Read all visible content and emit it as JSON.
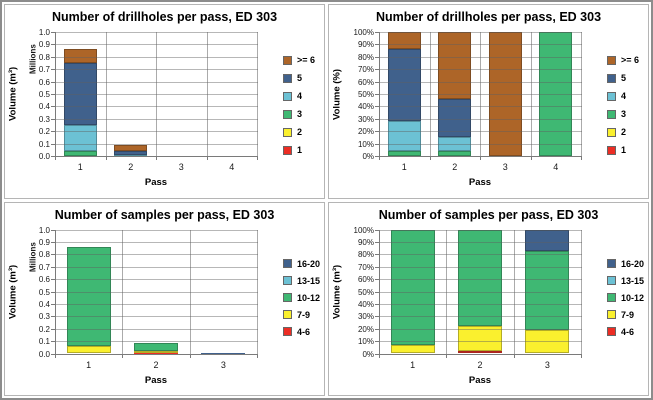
{
  "page": {
    "background": "#ffffff",
    "outer_border_color": "#8c8c8c",
    "panel_border_color": "#b5b5b5"
  },
  "palette": {
    "red": "#EC2D24",
    "yellow": "#FAF02E",
    "green": "#3FB873",
    "light_blue": "#6CC1D4",
    "dark_blue": "#40618C",
    "brown": "#AD6528",
    "gridline": "#ababab",
    "axis": "#7a7a7a"
  },
  "chart_data": [
    {
      "type": "bar",
      "stacked": true,
      "title": "Number of drillholes per pass, ED 303",
      "xlabel": "Pass",
      "ylabel": "Volume (m³)",
      "y_unit_label": "Millions",
      "ylim": [
        0,
        1.0
      ],
      "ytick_step": 0.1,
      "ytick_format": "number",
      "grid": true,
      "legend_position": "right",
      "categories": [
        "1",
        "2",
        "3",
        "4"
      ],
      "series": [
        {
          "name": "1",
          "color": "#EC2D24",
          "values": [
            0,
            0,
            0,
            0
          ]
        },
        {
          "name": "2",
          "color": "#FAF02E",
          "values": [
            0,
            0,
            0,
            0
          ]
        },
        {
          "name": "3",
          "color": "#3FB873",
          "values": [
            0.04,
            0.003,
            0,
            0.002
          ]
        },
        {
          "name": "4",
          "color": "#6CC1D4",
          "values": [
            0.21,
            0.009,
            0,
            0
          ]
        },
        {
          "name": "5",
          "color": "#40618C",
          "values": [
            0.5,
            0.025,
            0,
            0
          ]
        },
        {
          "name": ">= 6",
          "color": "#AD6528",
          "values": [
            0.11,
            0.048,
            0.002,
            0
          ]
        }
      ]
    },
    {
      "type": "bar",
      "stacked": true,
      "title": "Number of drillholes per pass, ED 303",
      "xlabel": "Pass",
      "ylabel": "Volume (%)",
      "y_unit_label": null,
      "ylim": [
        0,
        100
      ],
      "ytick_step": 10,
      "ytick_format": "percent",
      "grid": true,
      "legend_position": "right",
      "categories": [
        "1",
        "2",
        "3",
        "4"
      ],
      "series": [
        {
          "name": "1",
          "color": "#EC2D24",
          "values": [
            0,
            0,
            0,
            0
          ]
        },
        {
          "name": "2",
          "color": "#FAF02E",
          "values": [
            0,
            0,
            0,
            0
          ]
        },
        {
          "name": "3",
          "color": "#3FB873",
          "values": [
            4,
            4,
            0,
            100
          ]
        },
        {
          "name": "4",
          "color": "#6CC1D4",
          "values": [
            24,
            11,
            0,
            0
          ]
        },
        {
          "name": "5",
          "color": "#40618C",
          "values": [
            58,
            31,
            0,
            0
          ]
        },
        {
          "name": ">= 6",
          "color": "#AD6528",
          "values": [
            14,
            54,
            100,
            0
          ]
        }
      ]
    },
    {
      "type": "bar",
      "stacked": true,
      "title": "Number of samples per pass, ED 303",
      "xlabel": "Pass",
      "ylabel": "Volume (m³)",
      "y_unit_label": "Millions",
      "ylim": [
        0,
        1.0
      ],
      "ytick_step": 0.1,
      "ytick_format": "number",
      "grid": true,
      "legend_position": "right",
      "categories": [
        "1",
        "2",
        "3"
      ],
      "series": [
        {
          "name": "4-6",
          "color": "#EC2D24",
          "values": [
            0,
            0.002,
            0
          ]
        },
        {
          "name": "7-9",
          "color": "#FAF02E",
          "values": [
            0.06,
            0.015,
            0.001
          ]
        },
        {
          "name": "10-12",
          "color": "#3FB873",
          "values": [
            0.8,
            0.068,
            0.004
          ]
        },
        {
          "name": "13-15",
          "color": "#6CC1D4",
          "values": [
            0,
            0,
            0
          ]
        },
        {
          "name": "16-20",
          "color": "#40618C",
          "values": [
            0,
            0,
            0.001
          ]
        }
      ]
    },
    {
      "type": "bar",
      "stacked": true,
      "title": "Number of samples per pass, ED 303",
      "xlabel": "Pass",
      "ylabel": "Volume (m³)",
      "y_unit_label": null,
      "ylim": [
        0,
        100
      ],
      "ytick_step": 10,
      "ytick_format": "percent",
      "grid": true,
      "legend_position": "right",
      "categories": [
        "1",
        "2",
        "3"
      ],
      "series": [
        {
          "name": "4-6",
          "color": "#EC2D24",
          "values": [
            0,
            2,
            0
          ]
        },
        {
          "name": "7-9",
          "color": "#FAF02E",
          "values": [
            7,
            20,
            19
          ]
        },
        {
          "name": "10-12",
          "color": "#3FB873",
          "values": [
            93,
            78,
            64
          ]
        },
        {
          "name": "13-15",
          "color": "#6CC1D4",
          "values": [
            0,
            0,
            0
          ]
        },
        {
          "name": "16-20",
          "color": "#40618C",
          "values": [
            0,
            0,
            17
          ]
        }
      ]
    }
  ]
}
